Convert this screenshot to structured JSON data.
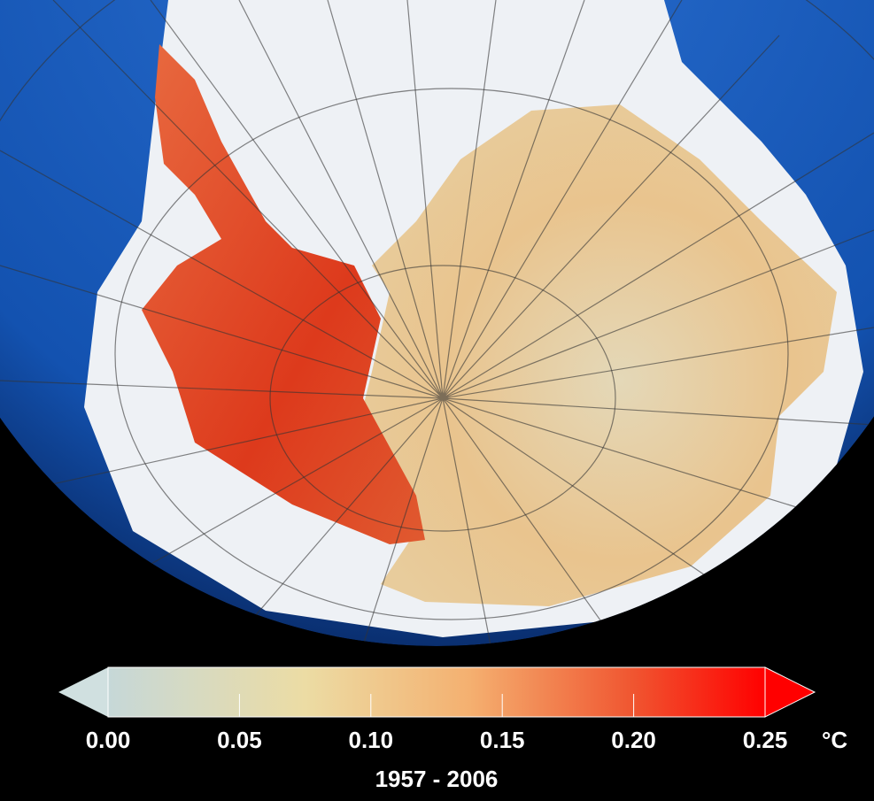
{
  "colorbar": {
    "lim": [
      0,
      0.25
    ],
    "ticks": [
      {
        "value": 0,
        "label": "0.00"
      },
      {
        "value": 0.05,
        "label": "0.05"
      },
      {
        "value": 0.1,
        "label": "0.10"
      },
      {
        "value": 0.15,
        "label": "0.15"
      },
      {
        "value": 0.2,
        "label": "0.20"
      },
      {
        "value": 0.25,
        "label": "0.25"
      }
    ],
    "unit": "°C"
  },
  "caption": "1957 - 2006"
}
